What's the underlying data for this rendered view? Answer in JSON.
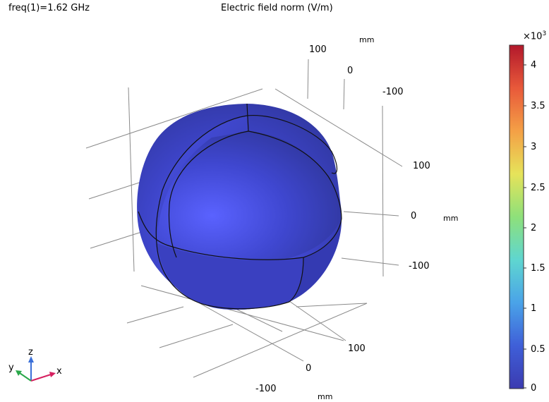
{
  "header": {
    "freq_label": "freq(1)=1.62 GHz",
    "plot_title": "Electric field norm (V/m)"
  },
  "axes": {
    "top_unit": "mm",
    "top_ticks": [
      "100",
      "0",
      "-100"
    ],
    "right_unit": "mm",
    "right_ticks": [
      "100",
      "0",
      "-100"
    ],
    "bottom_unit": "mm",
    "bottom_ticks": [
      "100",
      "0",
      "-100"
    ]
  },
  "colorbar": {
    "multiplier_base": "×10",
    "multiplier_exp": "3",
    "ticks": [
      "4",
      "3.5",
      "3",
      "2.5",
      "2",
      "1.5",
      "1",
      "0.5",
      "0"
    ],
    "colors": [
      "#b2182b",
      "#e8593a",
      "#f4a046",
      "#e6e35a",
      "#8ee07a",
      "#5fd6d0",
      "#4aa3e8",
      "#3f5fd8",
      "#3b3bb0"
    ]
  },
  "triad": {
    "x": "x",
    "y": "y",
    "z": "z",
    "x_color": "#d62060",
    "y_color": "#2aa84a",
    "z_color": "#3a6fd8"
  },
  "surface": {
    "base_color": "#3a3fc0",
    "highlight_color": "#5a63ff"
  }
}
